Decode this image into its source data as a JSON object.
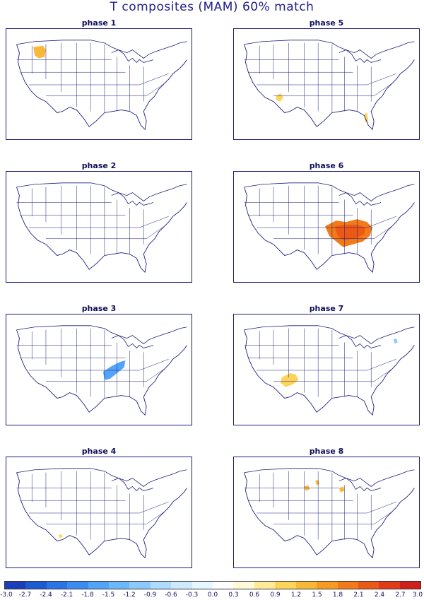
{
  "title": "T composites (MAM)   60% match",
  "panels": [
    {
      "id": "phase1",
      "label": "phase 1"
    },
    {
      "id": "phase5",
      "label": "phase 5"
    },
    {
      "id": "phase2",
      "label": "phase 2"
    },
    {
      "id": "phase6",
      "label": "phase 6"
    },
    {
      "id": "phase3",
      "label": "phase 3"
    },
    {
      "id": "phase7",
      "label": "phase 7"
    },
    {
      "id": "phase4",
      "label": "phase 4"
    },
    {
      "id": "phase8",
      "label": "phase 8"
    }
  ],
  "colorbar": {
    "labels": [
      "-3.0",
      "-2.7",
      "-2.4",
      "-2.1",
      "-1.8",
      "-1.5",
      "-1.2",
      "-0.9",
      "-0.6",
      "-0.3",
      "0.0",
      "0.3",
      "0.6",
      "0.9",
      "1.2",
      "1.5",
      "1.8",
      "2.1",
      "2.4",
      "2.7",
      "3.0"
    ],
    "colors": [
      "#1a3fb8",
      "#1e5ad2",
      "#2a74e6",
      "#3b8cf2",
      "#52a4f8",
      "#6cb8fc",
      "#8ccafe",
      "#aedcff",
      "#cdeaff",
      "#e8f6ff",
      "#ffffff",
      "#fffbd8",
      "#ffea9a",
      "#fcd45a",
      "#f9b836",
      "#f69a22",
      "#f27a18",
      "#ec5816",
      "#e23a18",
      "#cf1e1c"
    ]
  },
  "anomalies": {
    "phase1": [
      {
        "shape": "nw-blob",
        "color": "#f9b836"
      }
    ],
    "phase5": [
      {
        "shape": "sw-small",
        "color": "#fcd45a"
      },
      {
        "shape": "florida",
        "color": "#fcd45a"
      }
    ],
    "phase2": [],
    "phase6": [
      {
        "shape": "southeast-large",
        "color": "#f27a18"
      },
      {
        "shape": "southeast-core",
        "color": "#ec5816"
      }
    ],
    "phase3": [
      {
        "shape": "ohio-valley",
        "color": "#52a4f8"
      }
    ],
    "phase7": [
      {
        "shape": "arizona",
        "color": "#fcd45a"
      },
      {
        "shape": "ne-small",
        "color": "#8ccafe"
      }
    ],
    "phase4": [
      {
        "shape": "sw-dot",
        "color": "#fcd45a"
      }
    ],
    "phase8": [
      {
        "shape": "upper-midwest",
        "color": "#f9b836"
      }
    ]
  }
}
